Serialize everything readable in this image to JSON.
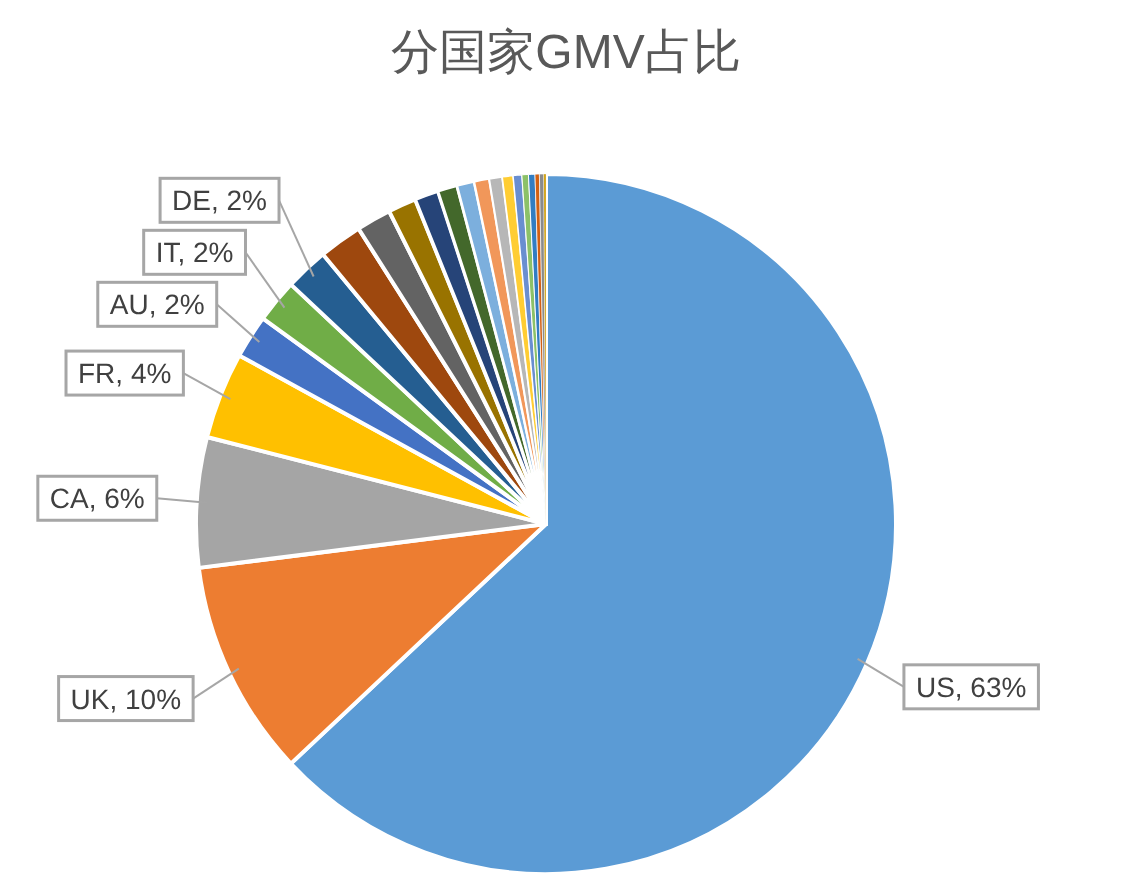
{
  "chart_data": {
    "type": "pie",
    "title": "分国家GMV占比",
    "categories": [
      "US",
      "UK",
      "CA",
      "FR",
      "AU",
      "IT",
      "DE",
      null,
      null,
      null,
      null,
      null,
      null,
      null,
      null,
      null,
      null,
      null,
      null,
      null,
      null,
      null
    ],
    "values": [
      63,
      10,
      6,
      4,
      2,
      2,
      2,
      2,
      1.6,
      1.3,
      1.1,
      0.9,
      0.8,
      0.7,
      0.6,
      0.5,
      0.4,
      0.3,
      0.3,
      0.2,
      0.2,
      0.1
    ],
    "value_labels": [
      "63%",
      "10%",
      "6%",
      "4%",
      "2%",
      "2%",
      "2%",
      null,
      null,
      null,
      null,
      null,
      null,
      null,
      null,
      null,
      null,
      null,
      null,
      null,
      null,
      null
    ],
    "colors": [
      "#5b9bd5",
      "#ed7d31",
      "#a5a5a5",
      "#ffc000",
      "#4472c4",
      "#70ad47",
      "#255e91",
      "#9e480e",
      "#636363",
      "#997300",
      "#264478",
      "#43682b",
      "#7cafdd",
      "#f1975a",
      "#b7b7b7",
      "#ffcd33",
      "#698ed0",
      "#8cc168",
      "#327dc2",
      "#d26012",
      "#8b8b8b",
      "#cc9a00"
    ]
  }
}
